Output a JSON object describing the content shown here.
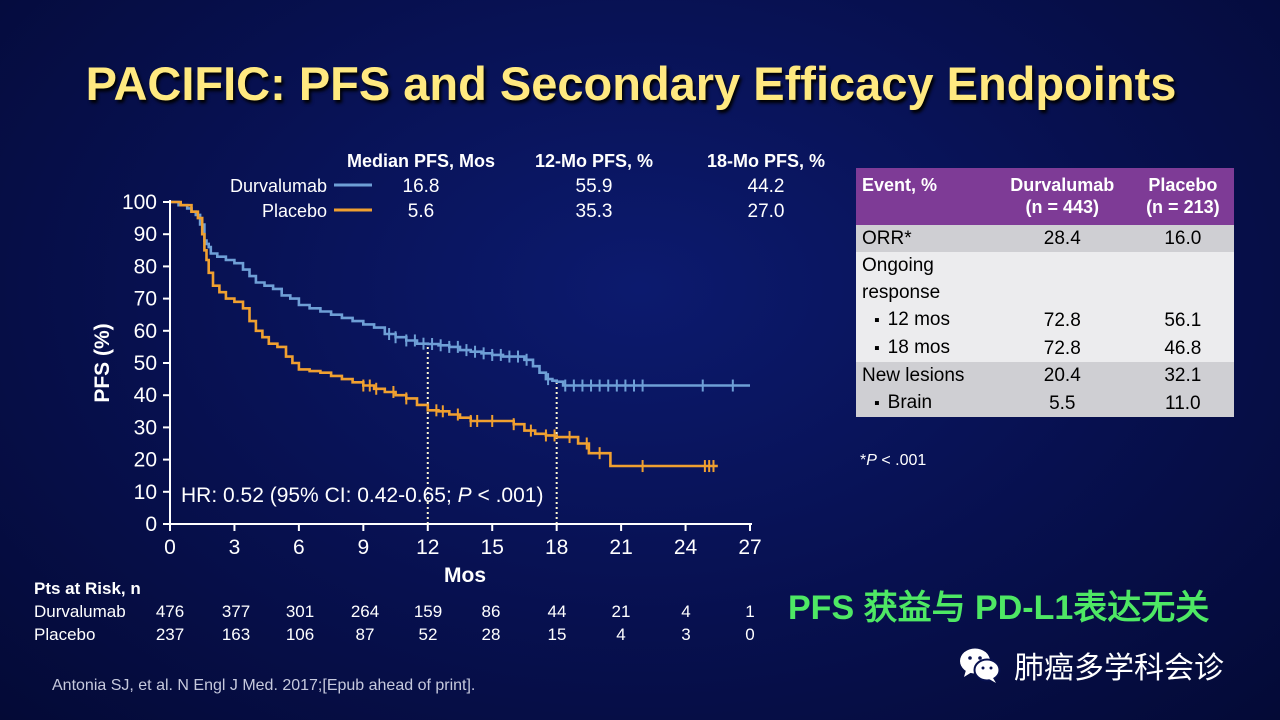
{
  "slide_title": "PACIFIC: PFS and Secondary Efficacy Endpoints",
  "summary_table": {
    "headers": [
      "Median PFS, Mos",
      "12-Mo PFS, %",
      "18-Mo PFS, %"
    ],
    "rows": [
      {
        "name": "Durvalumab",
        "values": [
          "16.8",
          "55.9",
          "44.2"
        ]
      },
      {
        "name": "Placebo",
        "values": [
          "5.6",
          "35.3",
          "27.0"
        ]
      }
    ]
  },
  "chart_data": {
    "type": "line",
    "title": "",
    "xlabel": "Mos",
    "ylabel": "PFS (%)",
    "xlim": [
      0,
      27
    ],
    "ylim": [
      0,
      100
    ],
    "xticks": [
      0,
      3,
      6,
      9,
      12,
      15,
      18,
      21,
      24,
      27
    ],
    "yticks": [
      0,
      10,
      20,
      30,
      40,
      50,
      60,
      70,
      80,
      90,
      100
    ],
    "xtick_labels": [
      "0",
      "3",
      "6",
      "9",
      "12",
      "15",
      "18",
      "21",
      "24",
      "27"
    ],
    "ytick_labels": [
      "0",
      "10",
      "20",
      "30",
      "40",
      "50",
      "60",
      "70",
      "80",
      "90",
      "100"
    ],
    "step": true,
    "reference_lines_x": [
      12,
      18
    ],
    "annotation_parts": [
      "HR: 0.52 (95% CI: 0.42-0.65; ",
      "P",
      " < .001)"
    ],
    "series": [
      {
        "name": "Durvalumab",
        "color": "#6e9fd6",
        "x": [
          0,
          0.4,
          0.8,
          1.0,
          1.2,
          1.4,
          1.6,
          1.7,
          1.8,
          1.9,
          2.2,
          2.6,
          3.0,
          3.4,
          3.7,
          4.0,
          4.4,
          4.8,
          5.2,
          5.6,
          6.0,
          6.5,
          7.0,
          7.5,
          8.0,
          8.5,
          9.0,
          9.5,
          10.0,
          10.5,
          11.0,
          11.5,
          12.0,
          12.5,
          13.0,
          13.5,
          14.0,
          14.5,
          15.0,
          15.5,
          16.0,
          16.5,
          16.9,
          17.2,
          17.5,
          17.8,
          18.0,
          18.3,
          27.0
        ],
        "y": [
          100,
          99,
          98,
          97,
          96,
          93,
          88,
          87,
          86,
          84,
          83,
          82,
          81,
          79,
          77,
          75,
          74,
          73,
          71,
          70,
          68,
          67,
          66,
          65,
          64,
          63,
          62,
          61,
          59,
          58,
          57,
          56,
          55.9,
          55.5,
          55,
          54,
          53.5,
          53,
          52.5,
          52,
          52,
          51,
          49,
          47,
          45,
          44.5,
          44.2,
          43,
          43
        ],
        "censor_x": [
          10.2,
          10.5,
          11.0,
          11.4,
          11.8,
          12.2,
          12.6,
          13.0,
          13.4,
          13.8,
          14.2,
          14.6,
          15.0,
          15.4,
          15.8,
          16.2,
          16.6,
          17.6,
          18.4,
          18.8,
          19.2,
          19.6,
          20.0,
          20.4,
          20.8,
          21.2,
          21.6,
          22.0,
          24.8,
          26.2
        ]
      },
      {
        "name": "Placebo",
        "color": "#f0a030",
        "x": [
          0,
          0.5,
          1.0,
          1.3,
          1.5,
          1.6,
          1.7,
          1.8,
          2.0,
          2.3,
          2.6,
          3.0,
          3.4,
          3.7,
          4.0,
          4.3,
          4.6,
          5.0,
          5.4,
          5.7,
          6.0,
          6.5,
          7.0,
          7.5,
          8.0,
          8.5,
          9.0,
          9.5,
          10.0,
          10.5,
          11.0,
          11.5,
          12.0,
          12.5,
          13.0,
          13.5,
          14.0,
          16.0,
          16.5,
          17.0,
          17.5,
          18.0,
          19.0,
          19.5,
          20.5,
          25.5
        ],
        "y": [
          100,
          99,
          97,
          95,
          90,
          85,
          82,
          78,
          74,
          72,
          70,
          69,
          67,
          63,
          60,
          58,
          56,
          55,
          52,
          50,
          48,
          47.5,
          47,
          46,
          45,
          44,
          43,
          42,
          41,
          40,
          39,
          37,
          35.3,
          35,
          34,
          33,
          32,
          31,
          29,
          28,
          27.5,
          27.0,
          25,
          22,
          18,
          18
        ],
        "censor_x": [
          9.0,
          9.3,
          9.6,
          10.4,
          11.0,
          12.4,
          12.7,
          13.4,
          14.0,
          14.3,
          15.0,
          16.0,
          16.8,
          17.5,
          17.9,
          18.6,
          19.4,
          20.0,
          22.0,
          24.9,
          25.1,
          25.3
        ]
      }
    ]
  },
  "risk_table": {
    "header": "Pts at Risk, n",
    "rows": [
      {
        "name": "Durvalumab",
        "values": [
          "476",
          "377",
          "301",
          "264",
          "159",
          "86",
          "44",
          "21",
          "4",
          "1"
        ]
      },
      {
        "name": "Placebo",
        "values": [
          "237",
          "163",
          "106",
          "87",
          "52",
          "28",
          "15",
          "4",
          "3",
          "0"
        ]
      }
    ]
  },
  "events_table": {
    "headers": {
      "event": "Event, %",
      "durva_name": "Durvalumab",
      "durva_n": "(n = 443)",
      "placebo_name": "Placebo",
      "placebo_n": "(n = 213)"
    },
    "orr": {
      "label": "ORR*",
      "durva": "28.4",
      "placebo": "16.0"
    },
    "ongoing": {
      "label_line1": "Ongoing",
      "label_line2": "response",
      "items": [
        {
          "label": "12 mos",
          "durva": "72.8",
          "placebo": "56.1"
        },
        {
          "label": "18 mos",
          "durva": "72.8",
          "placebo": "46.8"
        }
      ]
    },
    "new_lesions": {
      "label": "New lesions",
      "durva": "20.4",
      "placebo": "32.1"
    },
    "brain": {
      "label": "Brain",
      "durva": "5.5",
      "placebo": "11.0"
    }
  },
  "footnote": {
    "prefix": "*",
    "p": "P",
    "rest": " < .001"
  },
  "banner_text": "PFS 获益与 PD-L1表达无关",
  "wechat_name": "肺癌多学科会诊",
  "citation": "Antonia SJ, et al. N Engl J Med. 2017;[Epub ahead of print].",
  "icon_names": [
    "wechat-icon"
  ]
}
